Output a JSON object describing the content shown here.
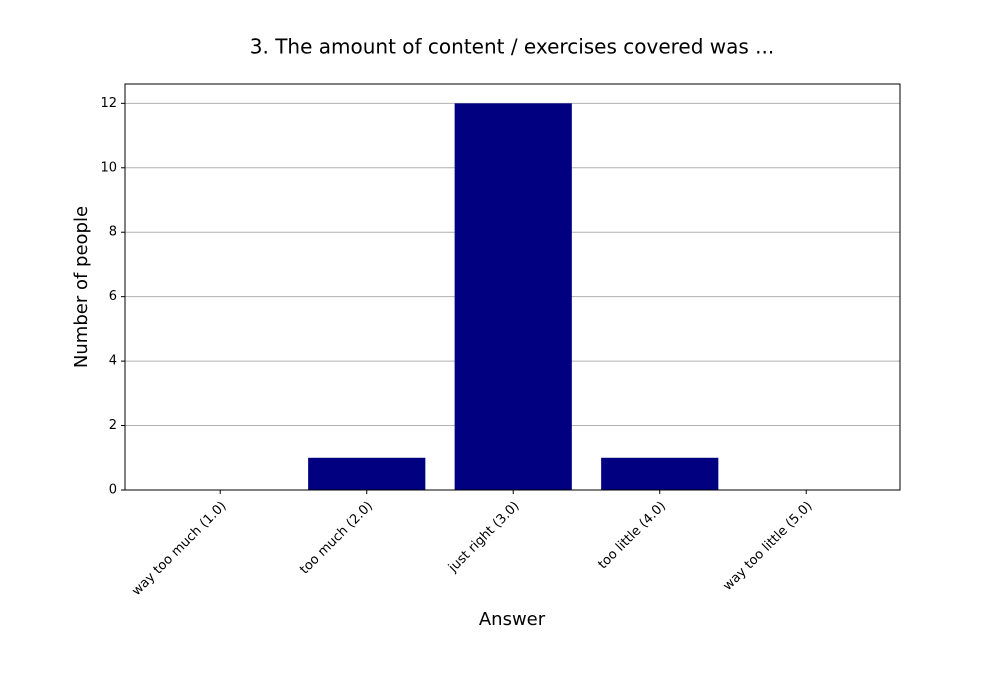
{
  "chart_data": {
    "type": "bar",
    "title": "3. The amount of content / exercises covered was ...",
    "x_label": "Answer",
    "y_label": "Number of people",
    "categories": [
      "way too much (1.0)",
      "too much (2.0)",
      "just right (3.0)",
      "too little (4.0)",
      "way too little (5.0)"
    ],
    "values": [
      0,
      1,
      12,
      1,
      0
    ],
    "color": "#000080",
    "ylim": [
      0,
      12.6
    ],
    "yticks": [
      0,
      2,
      4,
      6,
      8,
      10,
      12
    ],
    "grid": true
  }
}
